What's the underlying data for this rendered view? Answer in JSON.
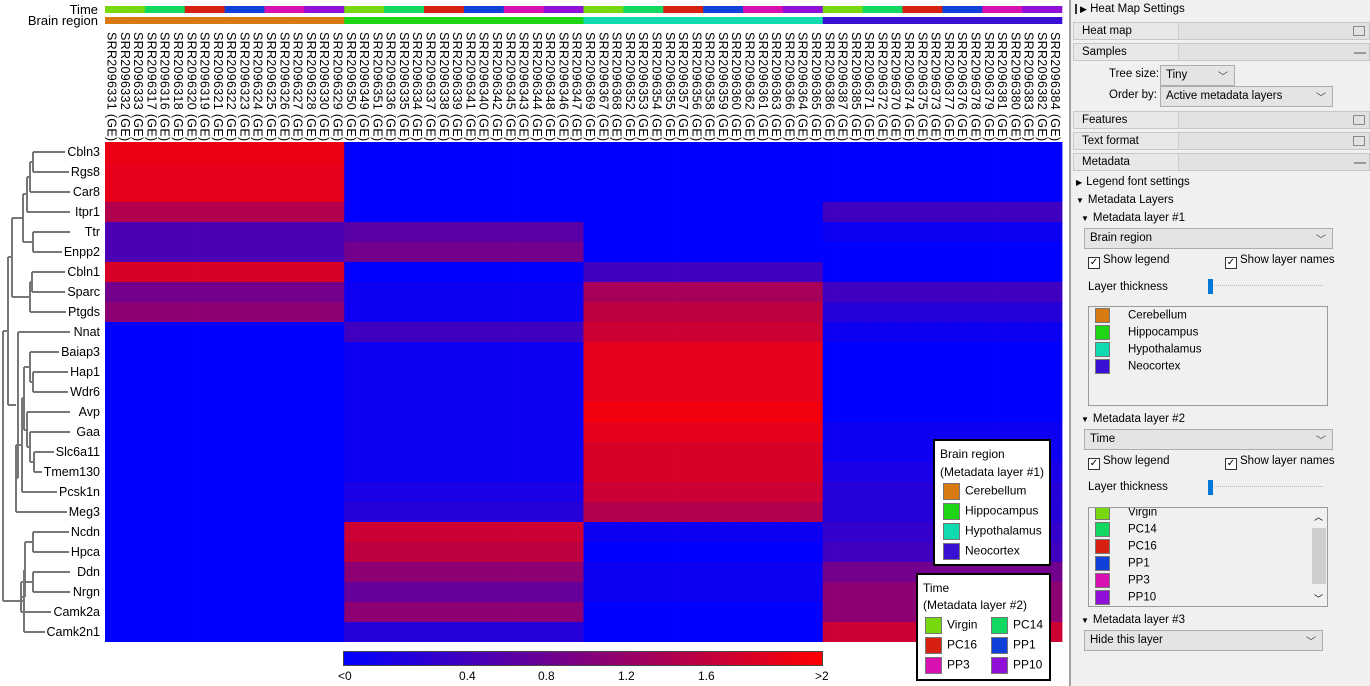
{
  "metadata_bars": {
    "time_label": "Time",
    "region_label": "Brain region"
  },
  "chart_data": {
    "type": "heatmap",
    "samples": [
      "SRR2096331 (GE)",
      "SRR2096332 (GE)",
      "SRR2096333 (GE)",
      "SRR2096317 (GE)",
      "SRR2096316 (GE)",
      "SRR2096318 (GE)",
      "SRR2096320 (GE)",
      "SRR2096319 (GE)",
      "SRR2096321 (GE)",
      "SRR2096322 (GE)",
      "SRR2096323 (GE)",
      "SRR2096324 (GE)",
      "SRR2096325 (GE)",
      "SRR2096326 (GE)",
      "SRR2096327 (GE)",
      "SRR2096328 (GE)",
      "SRR2096330 (GE)",
      "SRR2096329 (GE)",
      "SRR2096350 (GE)",
      "SRR2096349 (GE)",
      "SRR2096351 (GE)",
      "SRR2096336 (GE)",
      "SRR2096335 (GE)",
      "SRR2096334 (GE)",
      "SRR2096337 (GE)",
      "SRR2096338 (GE)",
      "SRR2096339 (GE)",
      "SRR2096341 (GE)",
      "SRR2096340 (GE)",
      "SRR2096342 (GE)",
      "SRR2096345 (GE)",
      "SRR2096343 (GE)",
      "SRR2096344 (GE)",
      "SRR2096348 (GE)",
      "SRR2096346 (GE)",
      "SRR2096347 (GE)",
      "SRR2096369 (GE)",
      "SRR2096367 (GE)",
      "SRR2096368 (GE)",
      "SRR2096352 (GE)",
      "SRR2096353 (GE)",
      "SRR2096354 (GE)",
      "SRR2096355 (GE)",
      "SRR2096357 (GE)",
      "SRR2096356 (GE)",
      "SRR2096358 (GE)",
      "SRR2096359 (GE)",
      "SRR2096360 (GE)",
      "SRR2096362 (GE)",
      "SRR2096361 (GE)",
      "SRR2096363 (GE)",
      "SRR2096366 (GE)",
      "SRR2096364 (GE)",
      "SRR2096365 (GE)",
      "SRR2096386 (GE)",
      "SRR2096387 (GE)",
      "SRR2096385 (GE)",
      "SRR2096371 (GE)",
      "SRR2096372 (GE)",
      "SRR2096370 (GE)",
      "SRR2096374 (GE)",
      "SRR2096375 (GE)",
      "SRR2096373 (GE)",
      "SRR2096377 (GE)",
      "SRR2096376 (GE)",
      "SRR2096378 (GE)",
      "SRR2096379 (GE)",
      "SRR2096381 (GE)",
      "SRR2096380 (GE)",
      "SRR2096383 (GE)",
      "SRR2096382 (GE)",
      "SRR2096384 (GE)"
    ],
    "sample_region": [
      "Cerebellum",
      "Hippocampus",
      "Hypothalamus",
      "Neocortex"
    ],
    "samples_per_region": 18,
    "time_order": [
      "Virgin",
      "PC14",
      "PC16",
      "PP1",
      "PP3",
      "PP10"
    ],
    "samples_per_time": 3,
    "genes": [
      "Cbln3",
      "Rgs8",
      "Car8",
      "Itpr1",
      "Ttr",
      "Enpp2",
      "Cbln1",
      "Sparc",
      "Ptgds",
      "Nnat",
      "Baiap3",
      "Hap1",
      "Wdr6",
      "Avp",
      "Gaa",
      "Slc6a11",
      "Tmem130",
      "Pcsk1n",
      "Meg3",
      "Ncdn",
      "Hpca",
      "Ddn",
      "Nrgn",
      "Camk2a",
      "Camk2n1"
    ],
    "region_mean_values": [
      [
        1.85,
        0,
        0,
        0
      ],
      [
        1.8,
        0,
        0,
        0
      ],
      [
        1.8,
        0,
        0,
        0
      ],
      [
        1.4,
        0,
        0,
        0.5
      ],
      [
        0.6,
        0.7,
        0,
        0.1
      ],
      [
        0.6,
        0.9,
        0,
        0
      ],
      [
        1.7,
        0,
        0.5,
        0
      ],
      [
        0.9,
        0.1,
        1.3,
        0.5
      ],
      [
        1.1,
        0.1,
        1.5,
        0.3
      ],
      [
        0,
        0.5,
        1.6,
        0.1
      ],
      [
        0,
        0.1,
        1.8,
        0
      ],
      [
        0,
        0.1,
        1.8,
        0
      ],
      [
        0,
        0.1,
        1.8,
        0
      ],
      [
        0,
        0.1,
        1.9,
        0
      ],
      [
        0,
        0.1,
        1.8,
        0.1
      ],
      [
        0,
        0.1,
        1.7,
        0.1
      ],
      [
        0,
        0.1,
        1.7,
        0.2
      ],
      [
        0,
        0.2,
        1.6,
        0.3
      ],
      [
        0,
        0.3,
        1.4,
        0.3
      ],
      [
        0,
        1.6,
        0.1,
        0.4
      ],
      [
        0,
        1.5,
        0,
        0.5
      ],
      [
        0,
        1.1,
        0.1,
        0.9
      ],
      [
        0,
        0.8,
        0.1,
        1.1
      ],
      [
        0,
        1.1,
        0,
        1.1
      ],
      [
        0,
        0.3,
        0,
        1.6
      ]
    ],
    "color_scale": {
      "min_label": "<0",
      "max_label": ">2",
      "ticks": [
        "0.4",
        "0.8",
        "1.2",
        "1.6"
      ],
      "range": [
        0,
        2
      ],
      "low_color": "#0000ff",
      "high_color": "#ff0000"
    }
  },
  "legends": {
    "region": {
      "title": "Brain region",
      "subtitle": "(Metadata layer #1)",
      "items": [
        {
          "label": "Cerebellum",
          "color": "#d97a10"
        },
        {
          "label": "Hippocampus",
          "color": "#1ed614"
        },
        {
          "label": "Hypothalamus",
          "color": "#10dab0"
        },
        {
          "label": "Neocortex",
          "color": "#3a10d4"
        }
      ]
    },
    "time": {
      "title": "Time",
      "subtitle": "(Metadata layer #2)",
      "items": [
        {
          "label": "Virgin",
          "color": "#78d810"
        },
        {
          "label": "PC14",
          "color": "#10d860"
        },
        {
          "label": "PC16",
          "color": "#d82010"
        },
        {
          "label": "PP1",
          "color": "#1040d8"
        },
        {
          "label": "PP3",
          "color": "#d810b0"
        },
        {
          "label": "PP10",
          "color": "#9010d8"
        }
      ]
    }
  },
  "panel": {
    "title": "Heat Map Settings",
    "sections": {
      "heatmap": "Heat map",
      "samples": "Samples",
      "features": "Features",
      "text_format": "Text format",
      "metadata": "Metadata"
    },
    "tree_size_label": "Tree size:",
    "tree_size_value": "Tiny",
    "order_by_label": "Order by:",
    "order_by_value": "Active metadata layers",
    "legend_font_settings": "Legend font settings",
    "metadata_layers": "Metadata Layers",
    "layer1": {
      "title": "Metadata layer #1",
      "value": "Brain region",
      "show_legend": "Show legend",
      "show_layer_names": "Show layer names",
      "thickness": "Layer thickness"
    },
    "layer2": {
      "title": "Metadata layer #2",
      "value": "Time",
      "show_legend": "Show legend",
      "show_layer_names": "Show layer names",
      "thickness": "Layer thickness"
    },
    "layer3": {
      "title": "Metadata layer #3",
      "value": "Hide this layer"
    }
  }
}
